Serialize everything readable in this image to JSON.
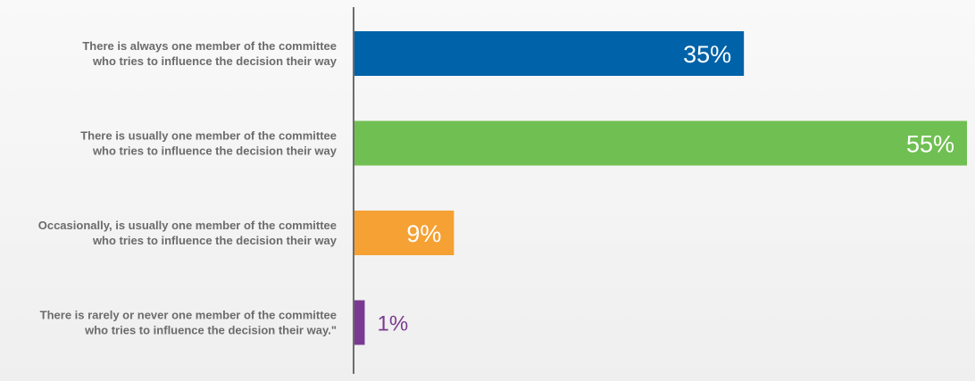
{
  "chart_data": {
    "type": "bar",
    "orientation": "horizontal",
    "categories": [
      [
        "There is always one member of the committee",
        "who tries to influence the decision their way"
      ],
      [
        "There is usually one member of the committee",
        "who tries to influence the decision their way"
      ],
      [
        "Occasionally, is usually one member of the committee",
        "who tries to influence the decision their way"
      ],
      [
        "There is rarely or never one member of the committee",
        "who tries to influence the decision their way.\""
      ]
    ],
    "values": [
      35,
      55,
      9,
      1
    ],
    "value_labels": [
      "35%",
      "55%",
      "9%",
      "1%"
    ],
    "colors": [
      "#0062a8",
      "#70bf52",
      "#f5a133",
      "#7b3a91"
    ],
    "value_label_colors": [
      "#ffffff",
      "#ffffff",
      "#ffffff",
      "#7b3a91"
    ],
    "xlim": [
      0,
      55
    ],
    "grid": false,
    "legend": "none"
  }
}
